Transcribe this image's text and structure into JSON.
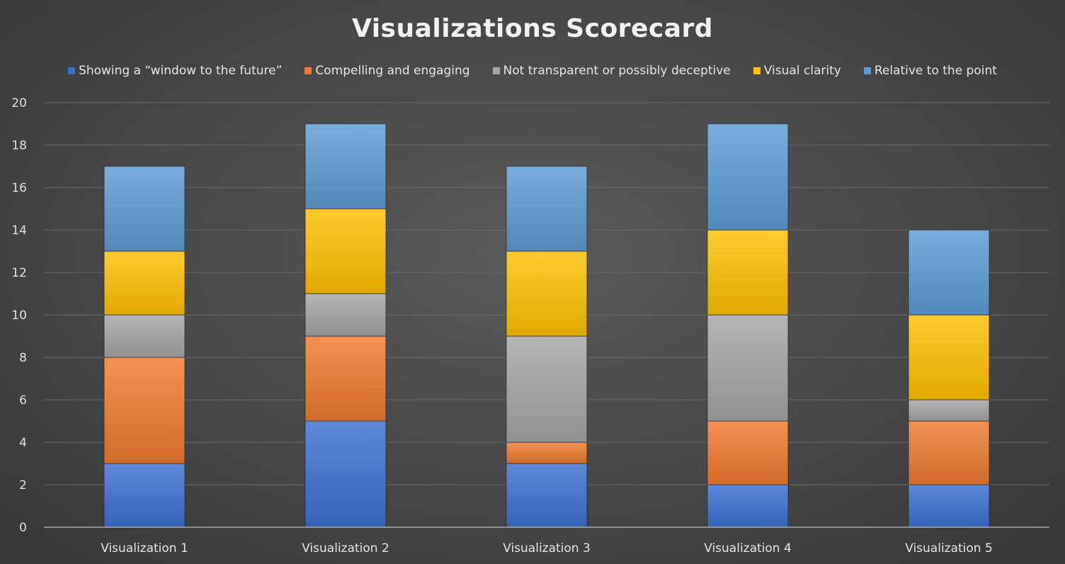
{
  "chart_data": {
    "type": "bar",
    "stacked": true,
    "title": "Visualizations Scorecard",
    "xlabel": "",
    "ylabel": "",
    "ylim": [
      0,
      20
    ],
    "yticks": [
      0,
      2,
      4,
      6,
      8,
      10,
      12,
      14,
      16,
      18,
      20
    ],
    "grid": true,
    "legend_position": "top",
    "categories": [
      "Visualization 1",
      "Visualization 2",
      "Visualization 3",
      "Visualization 4",
      "Visualization 5"
    ],
    "series": [
      {
        "name": "Showing a “window to the future”",
        "color": "#3a6fd0",
        "values": [
          3,
          5,
          3,
          2,
          2
        ]
      },
      {
        "name": "Compelling and engaging",
        "color": "#ee7a2e",
        "values": [
          5,
          4,
          1,
          3,
          3
        ]
      },
      {
        "name": "Not transparent or possibly deceptive",
        "color": "#a5a5a5",
        "values": [
          2,
          2,
          5,
          5,
          1
        ]
      },
      {
        "name": "Visual clarity",
        "color": "#ffc000",
        "values": [
          3,
          4,
          4,
          4,
          4
        ]
      },
      {
        "name": "Relative to the point",
        "color": "#5b9bd5",
        "values": [
          4,
          4,
          4,
          5,
          4
        ]
      }
    ]
  }
}
